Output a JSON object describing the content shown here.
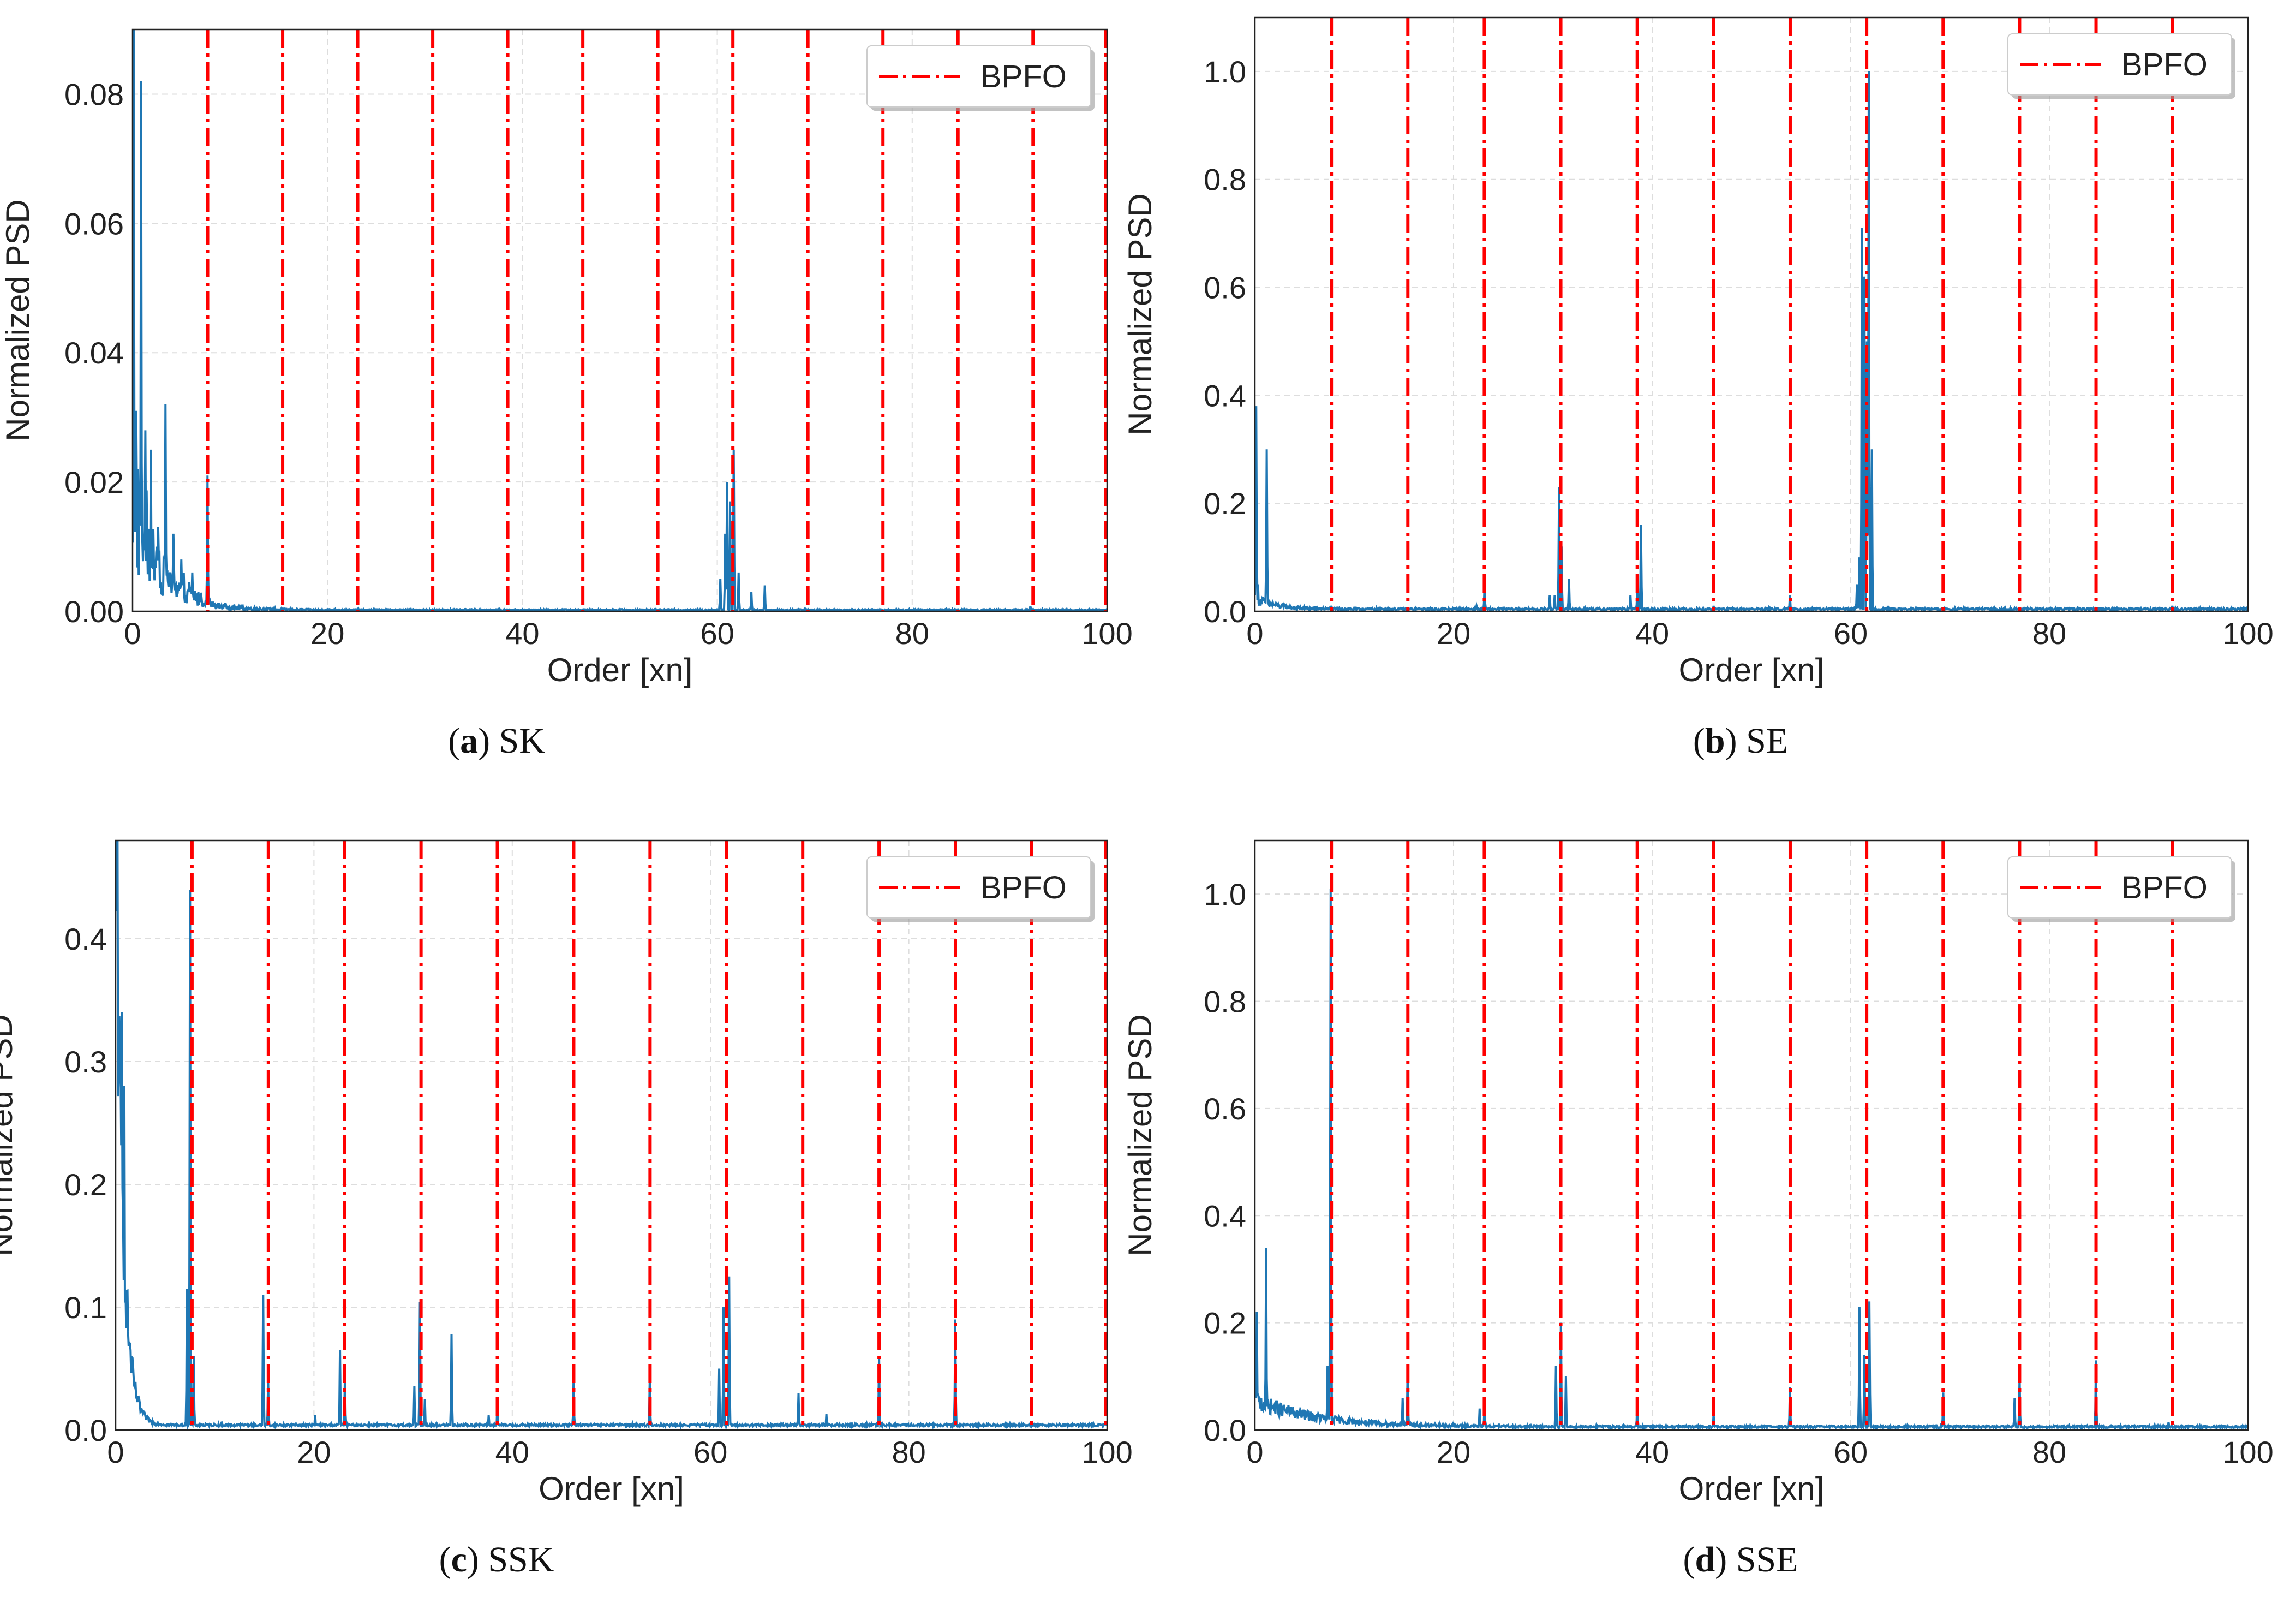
{
  "figure": {
    "colors": {
      "spectrum": "#1f77b4",
      "bpfo": "#ff0000",
      "grid": "#dddddd",
      "axis": "#222222"
    },
    "legend_label": "BPFO"
  },
  "chart_data": [
    {
      "id": "a",
      "type": "line",
      "caption": {
        "label": "a",
        "text": "SK"
      },
      "xlabel": "Order [xn]",
      "ylabel": "Normalized PSD",
      "xlim": [
        0,
        100
      ],
      "ylim": [
        0,
        0.09
      ],
      "xticks": [
        0,
        20,
        40,
        60,
        80,
        100
      ],
      "yticks": [
        0.0,
        0.02,
        0.04,
        0.06,
        0.08
      ],
      "ytick_labels": [
        "0.00",
        "0.02",
        "0.04",
        "0.06",
        "0.08"
      ],
      "legend": {
        "label": "BPFO",
        "position": "top-right"
      },
      "bpfo_lines": [
        7.7,
        15.4,
        23.1,
        30.8,
        38.5,
        46.2,
        53.9,
        61.6,
        69.3,
        77.0,
        84.7,
        92.4,
        100.0
      ],
      "background": {
        "type": "noise_decay",
        "start": 0.012,
        "decay": 3.0,
        "floor": 0.0002,
        "noise": 0.6,
        "noise2": [
          0.0,
          8,
          0.006
        ]
      },
      "peaks": [
        [
          0.1,
          0.09
        ],
        [
          0.4,
          0.031
        ],
        [
          0.9,
          0.082
        ],
        [
          1.3,
          0.028
        ],
        [
          1.9,
          0.025
        ],
        [
          2.6,
          0.013
        ],
        [
          3.4,
          0.032
        ],
        [
          4.2,
          0.012
        ],
        [
          5.0,
          0.008
        ],
        [
          6.1,
          0.006
        ],
        [
          7.7,
          0.021
        ],
        [
          60.3,
          0.005
        ],
        [
          60.8,
          0.012
        ],
        [
          61.0,
          0.02
        ],
        [
          61.3,
          0.017
        ],
        [
          61.7,
          0.025
        ],
        [
          62.2,
          0.006
        ],
        [
          63.5,
          0.003
        ],
        [
          64.9,
          0.004
        ],
        [
          92.1,
          0.0008
        ]
      ]
    },
    {
      "id": "b",
      "type": "line",
      "caption": {
        "label": "b",
        "text": "SE"
      },
      "xlabel": "Order [xn]",
      "ylabel": "Normalized PSD",
      "xlim": [
        0,
        100
      ],
      "ylim": [
        0,
        1.1
      ],
      "xticks": [
        0,
        20,
        40,
        60,
        80,
        100
      ],
      "yticks": [
        0.0,
        0.2,
        0.4,
        0.6,
        0.8,
        1.0
      ],
      "ytick_labels": [
        "0.0",
        "0.2",
        "0.4",
        "0.6",
        "0.8",
        "1.0"
      ],
      "legend": {
        "label": "BPFO",
        "position": "top-right"
      },
      "bpfo_lines": [
        7.7,
        15.4,
        23.1,
        30.8,
        38.5,
        46.2,
        53.9,
        61.6,
        69.3,
        77.0,
        84.7,
        92.4
      ],
      "background": {
        "type": "noise_decay",
        "start": 0.02,
        "decay": 2.0,
        "floor": 0.004,
        "noise": 0.5,
        "noise2": [
          0.0,
          1,
          0.0
        ]
      },
      "peaks": [
        [
          0.1,
          0.38
        ],
        [
          0.3,
          0.05
        ],
        [
          1.2,
          0.3
        ],
        [
          7.7,
          0.01
        ],
        [
          22.3,
          0.01
        ],
        [
          23.1,
          0.05
        ],
        [
          29.7,
          0.03
        ],
        [
          30.2,
          0.03
        ],
        [
          30.6,
          0.23
        ],
        [
          30.9,
          0.12
        ],
        [
          31.6,
          0.06
        ],
        [
          37.8,
          0.03
        ],
        [
          38.5,
          0.04
        ],
        [
          38.9,
          0.16
        ],
        [
          46.2,
          0.01
        ],
        [
          53.9,
          0.03
        ],
        [
          60.6,
          0.05
        ],
        [
          60.9,
          0.1
        ],
        [
          61.1,
          0.71
        ],
        [
          61.4,
          0.62
        ],
        [
          61.6,
          0.5
        ],
        [
          61.8,
          1.0
        ],
        [
          62.1,
          0.3
        ],
        [
          92.4,
          0.01
        ]
      ]
    },
    {
      "id": "c",
      "type": "line",
      "caption": {
        "label": "c",
        "text": "SSK"
      },
      "xlabel": "Order [xn]",
      "ylabel": "Normalized PSD",
      "xlim": [
        0,
        100
      ],
      "ylim": [
        0,
        0.48
      ],
      "xticks": [
        0,
        20,
        40,
        60,
        80,
        100
      ],
      "yticks": [
        0.0,
        0.1,
        0.2,
        0.3,
        0.4
      ],
      "ytick_labels": [
        "0.0",
        "0.1",
        "0.2",
        "0.3",
        "0.4"
      ],
      "legend": {
        "label": "BPFO",
        "position": "top-right"
      },
      "bpfo_lines": [
        7.7,
        15.4,
        23.1,
        30.8,
        38.5,
        46.2,
        53.9,
        61.6,
        69.3,
        77.0,
        84.7,
        92.4,
        100.0
      ],
      "background": {
        "type": "decay",
        "start": 0.48,
        "decay": 0.7,
        "floor": 0.004,
        "noise": 0.25,
        "noise2": [
          0.0,
          1,
          0.0
        ]
      },
      "peaks": [
        [
          0.2,
          0.48
        ],
        [
          0.6,
          0.34
        ],
        [
          0.9,
          0.28
        ],
        [
          1.4,
          0.07
        ],
        [
          7.2,
          0.115
        ],
        [
          7.5,
          0.44
        ],
        [
          7.9,
          0.06
        ],
        [
          14.9,
          0.11
        ],
        [
          15.4,
          0.04
        ],
        [
          20.1,
          0.012
        ],
        [
          22.6,
          0.065
        ],
        [
          23.1,
          0.046
        ],
        [
          30.1,
          0.036
        ],
        [
          30.7,
          0.104
        ],
        [
          31.2,
          0.025
        ],
        [
          33.9,
          0.078
        ],
        [
          37.6,
          0.012
        ],
        [
          38.5,
          0.022
        ],
        [
          46.2,
          0.04
        ],
        [
          53.9,
          0.043
        ],
        [
          60.9,
          0.05
        ],
        [
          61.3,
          0.1
        ],
        [
          61.9,
          0.125
        ],
        [
          68.9,
          0.03
        ],
        [
          71.7,
          0.013
        ],
        [
          77.0,
          0.06
        ],
        [
          84.7,
          0.09
        ],
        [
          92.3,
          0.004
        ]
      ]
    },
    {
      "id": "d",
      "type": "line",
      "caption": {
        "label": "d",
        "text": "SSE"
      },
      "xlabel": "Order [xn]",
      "ylabel": "Normalized PSD",
      "xlim": [
        0,
        100
      ],
      "ylim": [
        0,
        1.1
      ],
      "xticks": [
        0,
        20,
        40,
        60,
        80,
        100
      ],
      "yticks": [
        0.0,
        0.2,
        0.4,
        0.6,
        0.8,
        1.0
      ],
      "ytick_labels": [
        "0.0",
        "0.2",
        "0.4",
        "0.6",
        "0.8",
        "1.0"
      ],
      "legend": {
        "label": "BPFO",
        "position": "top-right"
      },
      "bpfo_lines": [
        7.7,
        15.4,
        23.1,
        30.8,
        38.5,
        46.2,
        53.9,
        61.6,
        69.3,
        77.0,
        84.7,
        92.4
      ],
      "background": {
        "type": "decay",
        "start": 0.05,
        "decay": 6.0,
        "floor": 0.006,
        "noise": 0.35,
        "noise2": [
          0.0,
          1,
          0.0
        ]
      },
      "peaks": [
        [
          0.2,
          0.22
        ],
        [
          1.1,
          0.34
        ],
        [
          7.3,
          0.12
        ],
        [
          7.6,
          1.01
        ],
        [
          14.9,
          0.06
        ],
        [
          15.4,
          0.11
        ],
        [
          22.6,
          0.04
        ],
        [
          23.1,
          0.06
        ],
        [
          30.3,
          0.12
        ],
        [
          30.8,
          0.2
        ],
        [
          31.3,
          0.1
        ],
        [
          38.5,
          0.06
        ],
        [
          46.2,
          0.03
        ],
        [
          53.9,
          0.08
        ],
        [
          60.9,
          0.23
        ],
        [
          61.4,
          0.14
        ],
        [
          61.9,
          0.24
        ],
        [
          69.3,
          0.07
        ],
        [
          76.5,
          0.06
        ],
        [
          77.0,
          0.1
        ],
        [
          84.7,
          0.13
        ],
        [
          92.0,
          0.015
        ]
      ]
    }
  ]
}
